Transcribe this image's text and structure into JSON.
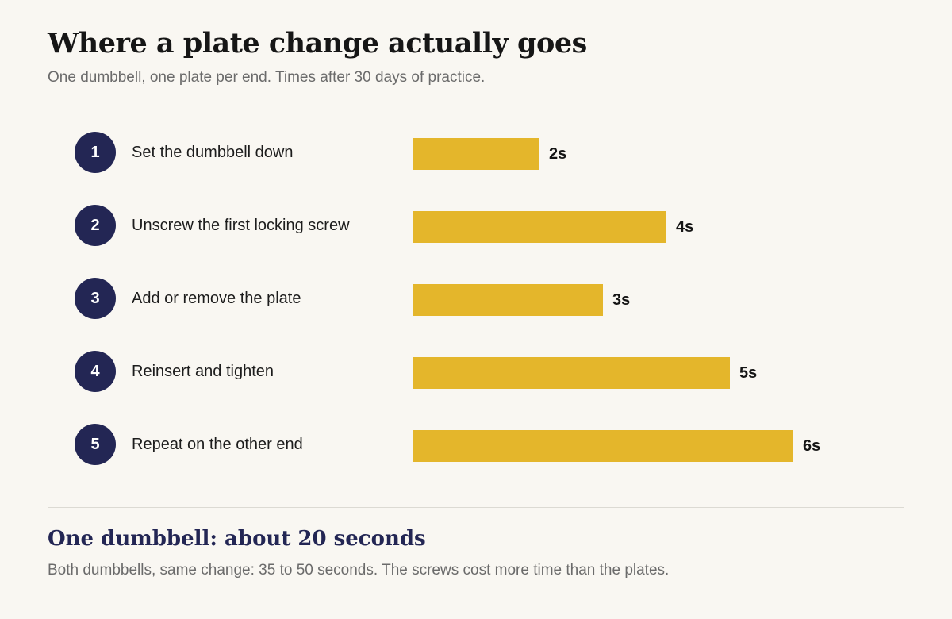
{
  "header": {
    "title": "Where a plate change actually goes",
    "subtitle": "One dumbbell, one plate per end. Times after 30 days of practice."
  },
  "chart_data": {
    "type": "bar",
    "orientation": "horizontal",
    "title": "Where a plate change actually goes",
    "subtitle": "One dumbbell, one plate per end. Times after 30 days of practice.",
    "unit": "s",
    "xlim": [
      0,
      8
    ],
    "grid": false,
    "legend": "none",
    "color": "#e4b62b",
    "steps": [
      {
        "number": "1",
        "label": "Set the dumbbell down",
        "value": 2,
        "value_label": "2s"
      },
      {
        "number": "2",
        "label": "Unscrew the first locking screw",
        "value": 4,
        "value_label": "4s"
      },
      {
        "number": "3",
        "label": "Add or remove the plate",
        "value": 3,
        "value_label": "3s"
      },
      {
        "number": "4",
        "label": "Reinsert and tighten",
        "value": 5,
        "value_label": "5s"
      },
      {
        "number": "5",
        "label": "Repeat on the other end",
        "value": 6,
        "value_label": "6s"
      }
    ]
  },
  "summary": {
    "title": "One dumbbell: about 20 seconds",
    "note": "Both dumbbells, same change: 35 to 50 seconds. The screws cost more time than the plates."
  }
}
